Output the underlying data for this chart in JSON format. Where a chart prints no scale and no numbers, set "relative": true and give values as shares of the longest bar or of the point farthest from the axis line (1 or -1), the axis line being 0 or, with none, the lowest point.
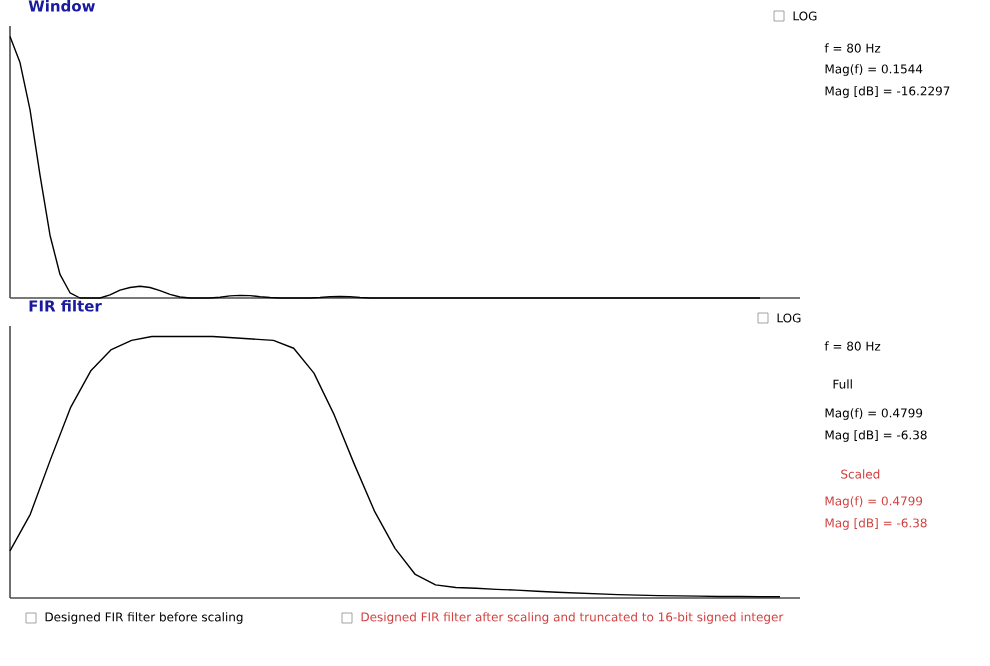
{
  "chart_data": [
    {
      "type": "line",
      "title": "Window",
      "relative": true,
      "categories": [
        null,
        null,
        null,
        null,
        null,
        null,
        null,
        null,
        null,
        null,
        null,
        null,
        null,
        null,
        null,
        null,
        null,
        null,
        null,
        null,
        null,
        null,
        null,
        null,
        null,
        null,
        null,
        null,
        null,
        null,
        null,
        null,
        null,
        null,
        null,
        null,
        null,
        null,
        null,
        null,
        null,
        null,
        null,
        null,
        null,
        null,
        null,
        null,
        null,
        null,
        null,
        null,
        null,
        null,
        null,
        null,
        null,
        null,
        null,
        null,
        null,
        null,
        null,
        null,
        null,
        null,
        null,
        null,
        null,
        null,
        null,
        null,
        null,
        null,
        null,
        null
      ],
      "series": [
        {
          "color": "#000000",
          "values": [
            1.0,
            0.9,
            0.72,
            0.47,
            0.24,
            0.09,
            0.02,
            0,
            0,
            0,
            0.012,
            0.03,
            0.04,
            0.045,
            0.04,
            0.028,
            0.014,
            0.004,
            0,
            0,
            0,
            0.003,
            0.008,
            0.01,
            0.009,
            0.005,
            0.002,
            0,
            0,
            0,
            0,
            0.002,
            0.005,
            0.006,
            0.005,
            0.002,
            0,
            0,
            0,
            0,
            0,
            0,
            0,
            0,
            0,
            0,
            0,
            0,
            0,
            0,
            0,
            0,
            0,
            0,
            0,
            0,
            0,
            0,
            0,
            0,
            0,
            0,
            0,
            0,
            0,
            0,
            0,
            0,
            0,
            0,
            0,
            0,
            0,
            0,
            0,
            0
          ]
        }
      ],
      "annotations": [
        "LOG",
        "f = 80 Hz",
        "Mag(f) = 0.1544",
        "Mag [dB] = -16.2297"
      ]
    },
    {
      "type": "line",
      "title": "FIR filter",
      "relative": true,
      "categories": [
        null,
        null,
        null,
        null,
        null,
        null,
        null,
        null,
        null,
        null,
        null,
        null,
        null,
        null,
        null,
        null,
        null,
        null,
        null,
        null,
        null,
        null,
        null,
        null,
        null,
        null,
        null,
        null,
        null,
        null,
        null,
        null,
        null,
        null,
        null,
        null,
        null,
        null,
        null
      ],
      "series": [
        {
          "color": "#000000",
          "values": [
            0.18,
            0.32,
            0.53,
            0.73,
            0.87,
            0.95,
            0.985,
            1.0,
            1.0,
            1.0,
            1.0,
            0.995,
            0.99,
            0.985,
            0.955,
            0.86,
            0.7,
            0.51,
            0.33,
            0.19,
            0.09,
            0.05,
            0.04,
            0.037,
            0.033,
            0.03,
            0.026,
            0.022,
            0.019,
            0.016,
            0.013,
            0.011,
            0.009,
            0.008,
            0.007,
            0.006,
            0.006,
            0.005,
            0.005
          ]
        }
      ],
      "annotations": [
        "LOG",
        "f = 80 Hz",
        "Full",
        "Mag(f) = 0.4799",
        "Mag [dB] = -6.38",
        "Scaled",
        "Mag(f) = 0.4799",
        "Mag [dB] = -6.38",
        "Designed FIR filter before scaling",
        "Designed FIR filter after scaling and truncated to 16-bit signed integer"
      ]
    }
  ]
}
